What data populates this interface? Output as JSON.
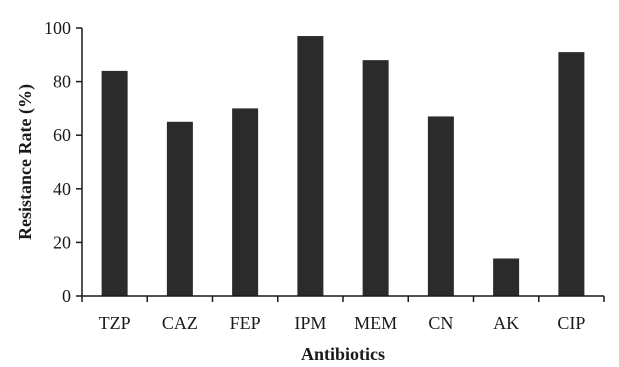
{
  "chart_data": {
    "type": "bar",
    "title": "",
    "xlabel": "Antibiotics",
    "ylabel": "Resistance Rate (%)",
    "categories": [
      "TZP",
      "CAZ",
      "FEP",
      "IPM",
      "MEM",
      "CN",
      "AK",
      "CIP"
    ],
    "values": [
      84,
      65,
      70,
      97,
      88,
      67,
      14,
      91
    ],
    "ylim": [
      0,
      100
    ],
    "yticks": [
      0,
      20,
      40,
      60,
      80,
      100
    ],
    "grid": false,
    "legend": "none",
    "bar_color": "#2b2b2b",
    "axis_color": "#1a1a1a"
  }
}
